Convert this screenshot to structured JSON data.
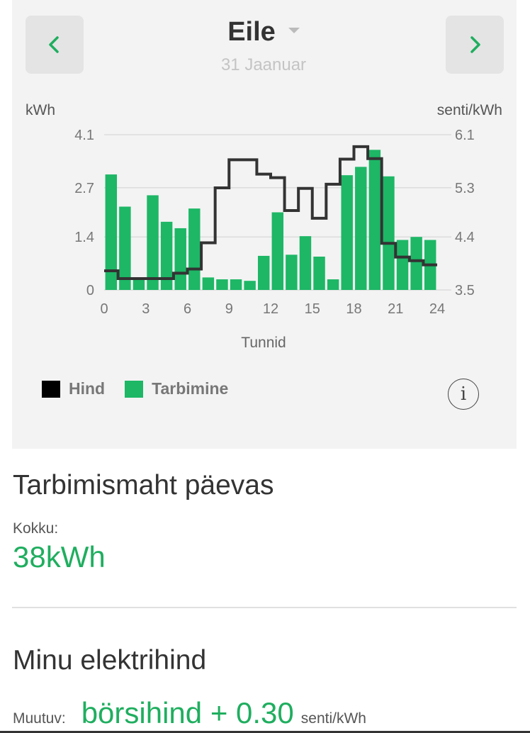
{
  "header": {
    "title": "Eile",
    "date": "31 Jaanuar"
  },
  "colors": {
    "accent": "#1fae5f",
    "bar": "#1db766",
    "price_line": "#333333",
    "card_bg": "#f3f3f3"
  },
  "icons": {
    "prev": "chevron-left-icon",
    "next": "chevron-right-icon",
    "dropdown": "caret-down-icon",
    "info": "info-icon"
  },
  "chart_data": {
    "type": "bar",
    "xlabel": "Tunnid",
    "ylabel_left": "kWh",
    "ylabel_right": "senti/kWh",
    "xlim": [
      0,
      24
    ],
    "x_ticks": [
      "0",
      "3",
      "6",
      "9",
      "12",
      "15",
      "18",
      "21",
      "24"
    ],
    "ylim_left": [
      0,
      4.1
    ],
    "y_ticks_left": [
      "4.1",
      "2.7",
      "1.4",
      "0"
    ],
    "ylim_right": [
      3.5,
      6.1
    ],
    "y_ticks_right": [
      "6.1",
      "5.3",
      "4.4",
      "3.5"
    ],
    "grid": true,
    "legend": "bottom-left",
    "series": [
      {
        "name": "Tarbimine",
        "type": "bar",
        "axis": "left",
        "x": [
          0,
          1,
          2,
          3,
          4,
          5,
          6,
          7,
          8,
          9,
          10,
          11,
          12,
          13,
          14,
          15,
          16,
          17,
          18,
          19,
          20,
          21,
          22,
          23
        ],
        "values": [
          3.05,
          2.2,
          0.28,
          2.5,
          1.8,
          1.63,
          2.15,
          0.33,
          0.28,
          0.28,
          0.24,
          0.9,
          2.05,
          0.93,
          1.42,
          0.88,
          0.28,
          3.03,
          3.25,
          3.7,
          3.0,
          1.32,
          1.4,
          1.32
        ]
      },
      {
        "name": "Hind",
        "type": "step",
        "axis": "right",
        "x": [
          0,
          1,
          2,
          3,
          4,
          5,
          6,
          7,
          8,
          9,
          10,
          11,
          12,
          13,
          14,
          15,
          16,
          17,
          18,
          19,
          20,
          21,
          22,
          23
        ],
        "values": [
          3.82,
          3.69,
          3.69,
          3.69,
          3.69,
          3.78,
          3.85,
          4.29,
          5.21,
          5.68,
          5.68,
          5.44,
          5.38,
          4.83,
          5.2,
          4.7,
          5.27,
          5.69,
          5.9,
          5.7,
          4.28,
          4.05,
          3.99,
          3.92
        ]
      }
    ]
  },
  "legend": {
    "price": "Hind",
    "consumption": "Tarbimine"
  },
  "info_label": "i",
  "consumption": {
    "title": "Tarbimismaht päevas",
    "total_label": "Kokku:",
    "total_value": "38kWh"
  },
  "pricing": {
    "title": "Minu elektrihind",
    "type_label": "Muutuv:",
    "value": "börsihind + 0.30",
    "unit": "senti/kWh"
  }
}
